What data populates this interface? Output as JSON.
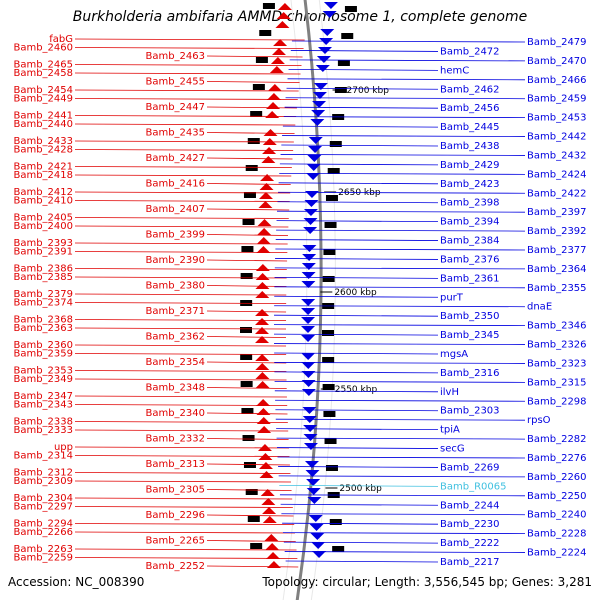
{
  "title": "Burkholderia ambifaria AMMD chromosome 1, complete genome",
  "footer": {
    "accession": "Accession: NC_008390",
    "topology": "Topology: circular; Length: 3,556,545 bp; Genes: 3,281"
  },
  "colors": {
    "left_strand": "#e00000",
    "right_strand": "#0000e0",
    "rna": "#40c0e0",
    "backbone": "#808080",
    "tick": "#20a020"
  },
  "scale_labels": [
    "2700 kbp",
    "2650 kbp",
    "2600 kbp",
    "2550 kbp",
    "2500 kbp"
  ],
  "left_genes": [
    "fabG",
    "Bamb_2460",
    "Bamb_2463",
    "Bamb_2465",
    "Bamb_2458",
    "Bamb_2455",
    "Bamb_2454",
    "Bamb_2449",
    "Bamb_2447",
    "Bamb_2441",
    "Bamb_2440",
    "Bamb_2435",
    "Bamb_2433",
    "Bamb_2428",
    "Bamb_2427",
    "Bamb_2421",
    "Bamb_2418",
    "Bamb_2416",
    "Bamb_2412",
    "Bamb_2410",
    "Bamb_2407",
    "Bamb_2405",
    "Bamb_2400",
    "Bamb_2399",
    "Bamb_2393",
    "Bamb_2391",
    "Bamb_2390",
    "Bamb_2386",
    "Bamb_2385",
    "Bamb_2380",
    "Bamb_2379",
    "Bamb_2374",
    "Bamb_2371",
    "Bamb_2368",
    "Bamb_2363",
    "Bamb_2362",
    "Bamb_2360",
    "Bamb_2359",
    "Bamb_2354",
    "Bamb_2353",
    "Bamb_2349",
    "Bamb_2348",
    "Bamb_2347",
    "Bamb_2343",
    "Bamb_2340",
    "Bamb_2338",
    "Bamb_2333",
    "Bamb_2332",
    "upp",
    "Bamb_2314",
    "Bamb_2313",
    "Bamb_2312",
    "Bamb_2309",
    "Bamb_2305",
    "Bamb_2304",
    "Bamb_2297",
    "Bamb_2296",
    "Bamb_2294",
    "Bamb_2266",
    "Bamb_2265",
    "Bamb_2263",
    "Bamb_2259",
    "Bamb_2252"
  ],
  "right_genes": [
    "Bamb_2479",
    "Bamb_2472",
    "Bamb_2470",
    "hemC",
    "Bamb_2466",
    "Bamb_2462",
    "Bamb_2459",
    "Bamb_2456",
    "Bamb_2453",
    "Bamb_2445",
    "Bamb_2442",
    "Bamb_2438",
    "Bamb_2432",
    "Bamb_2429",
    "Bamb_2424",
    "Bamb_2423",
    "Bamb_2422",
    "Bamb_2398",
    "Bamb_2397",
    "Bamb_2394",
    "Bamb_2392",
    "Bamb_2384",
    "Bamb_2377",
    "Bamb_2376",
    "Bamb_2364",
    "Bamb_2361",
    "Bamb_2355",
    "purT",
    "dnaE",
    "Bamb_2350",
    "Bamb_2346",
    "Bamb_2345",
    "Bamb_2326",
    "mgsA",
    "Bamb_2323",
    "Bamb_2316",
    "Bamb_2315",
    "ilvH",
    "Bamb_2298",
    "Bamb_2303",
    "rpsO",
    "tpiA",
    "Bamb_2282",
    "secG",
    "Bamb_2276",
    "Bamb_2269",
    "Bamb_2260",
    "Bamb_R0065",
    "Bamb_2250",
    "Bamb_2244",
    "Bamb_2240",
    "Bamb_2230",
    "Bamb_2228",
    "Bamb_2222",
    "Bamb_2224",
    "Bamb_2217"
  ]
}
